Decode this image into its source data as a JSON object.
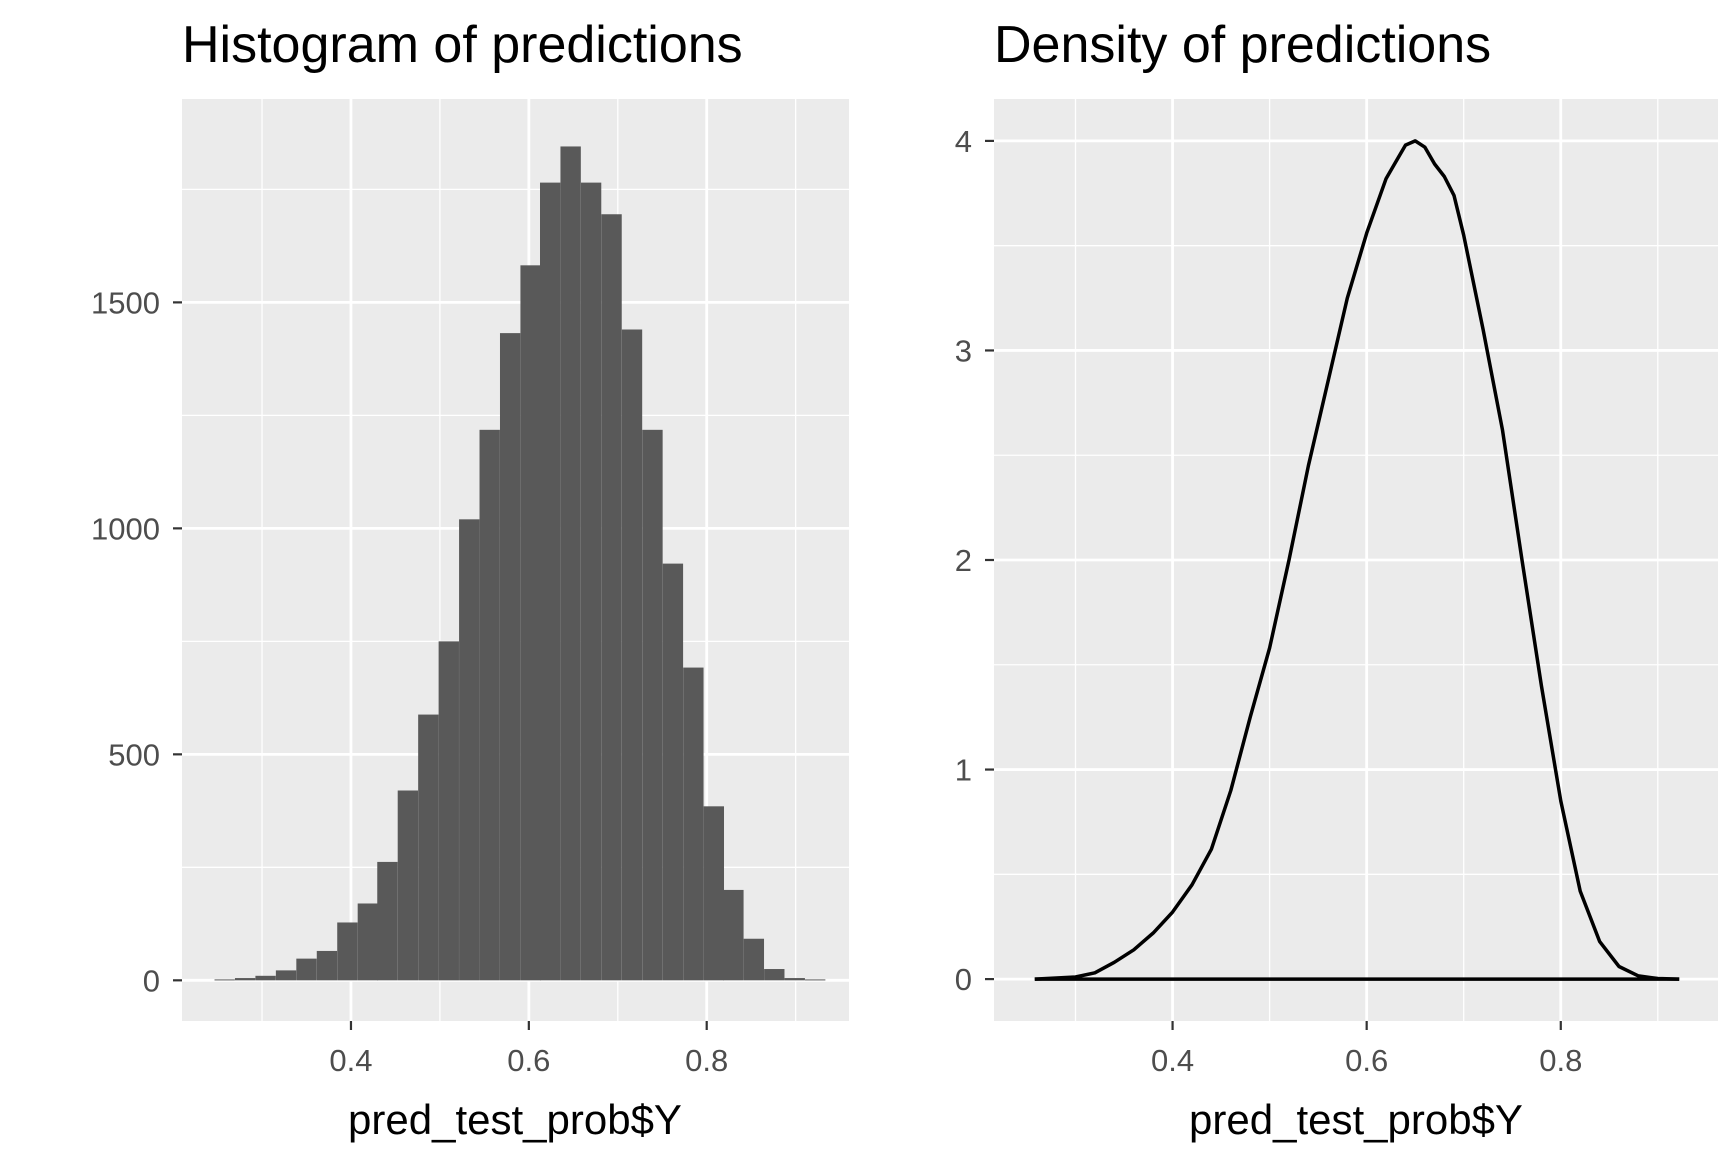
{
  "chart_data": [
    {
      "type": "bar",
      "title": "Histogram of predictions",
      "xlabel": "pred_test_prob$Y",
      "ylabel": "",
      "xlim": [
        0.21,
        0.96
      ],
      "ylim": [
        -90,
        1950
      ],
      "x_ticks": [
        0.4,
        0.6,
        0.8
      ],
      "x_tick_labels": [
        "0.4",
        "0.6",
        "0.8"
      ],
      "y_ticks": [
        0,
        500,
        1000,
        1500
      ],
      "y_tick_labels": [
        "0",
        "500",
        "1000",
        "1500"
      ],
      "bin_width": 0.0229,
      "bins": [
        {
          "x": 0.258,
          "count": 2
        },
        {
          "x": 0.281,
          "count": 5
        },
        {
          "x": 0.304,
          "count": 10
        },
        {
          "x": 0.327,
          "count": 22
        },
        {
          "x": 0.35,
          "count": 48
        },
        {
          "x": 0.373,
          "count": 65
        },
        {
          "x": 0.396,
          "count": 128
        },
        {
          "x": 0.419,
          "count": 170
        },
        {
          "x": 0.441,
          "count": 262
        },
        {
          "x": 0.464,
          "count": 420
        },
        {
          "x": 0.487,
          "count": 588
        },
        {
          "x": 0.51,
          "count": 750
        },
        {
          "x": 0.533,
          "count": 1020
        },
        {
          "x": 0.556,
          "count": 1218
        },
        {
          "x": 0.579,
          "count": 1432
        },
        {
          "x": 0.602,
          "count": 1582
        },
        {
          "x": 0.624,
          "count": 1765
        },
        {
          "x": 0.647,
          "count": 1845
        },
        {
          "x": 0.67,
          "count": 1765
        },
        {
          "x": 0.693,
          "count": 1695
        },
        {
          "x": 0.716,
          "count": 1440
        },
        {
          "x": 0.739,
          "count": 1218
        },
        {
          "x": 0.762,
          "count": 922
        },
        {
          "x": 0.785,
          "count": 692
        },
        {
          "x": 0.808,
          "count": 385
        },
        {
          "x": 0.83,
          "count": 200
        },
        {
          "x": 0.853,
          "count": 92
        },
        {
          "x": 0.876,
          "count": 25
        },
        {
          "x": 0.899,
          "count": 5
        },
        {
          "x": 0.922,
          "count": 2
        }
      ],
      "grid": true,
      "bar_color": "#595959",
      "panel_color": "#ebebeb"
    },
    {
      "type": "line",
      "title": "Density of predictions",
      "xlabel": "pred_test_prob$Y",
      "ylabel": "",
      "xlim": [
        0.216,
        0.962
      ],
      "ylim": [
        -0.2,
        4.2
      ],
      "x_ticks": [
        0.4,
        0.6,
        0.8
      ],
      "x_tick_labels": [
        "0.4",
        "0.6",
        "0.8"
      ],
      "y_ticks": [
        0,
        1,
        2,
        3,
        4
      ],
      "y_tick_labels": [
        "0",
        "1",
        "2",
        "3",
        "4"
      ],
      "points": [
        [
          0.258,
          0.0
        ],
        [
          0.3,
          0.01
        ],
        [
          0.32,
          0.03
        ],
        [
          0.34,
          0.08
        ],
        [
          0.36,
          0.14
        ],
        [
          0.38,
          0.22
        ],
        [
          0.4,
          0.32
        ],
        [
          0.42,
          0.45
        ],
        [
          0.44,
          0.62
        ],
        [
          0.46,
          0.9
        ],
        [
          0.48,
          1.25
        ],
        [
          0.5,
          1.58
        ],
        [
          0.52,
          2.0
        ],
        [
          0.54,
          2.45
        ],
        [
          0.56,
          2.85
        ],
        [
          0.58,
          3.25
        ],
        [
          0.6,
          3.56
        ],
        [
          0.62,
          3.82
        ],
        [
          0.64,
          3.98
        ],
        [
          0.65,
          4.0
        ],
        [
          0.66,
          3.97
        ],
        [
          0.67,
          3.89
        ],
        [
          0.68,
          3.83
        ],
        [
          0.69,
          3.74
        ],
        [
          0.7,
          3.55
        ],
        [
          0.72,
          3.1
        ],
        [
          0.74,
          2.62
        ],
        [
          0.76,
          2.0
        ],
        [
          0.78,
          1.4
        ],
        [
          0.8,
          0.85
        ],
        [
          0.82,
          0.42
        ],
        [
          0.84,
          0.18
        ],
        [
          0.86,
          0.06
        ],
        [
          0.88,
          0.015
        ],
        [
          0.9,
          0.003
        ],
        [
          0.922,
          0.0
        ]
      ],
      "baseline": 0,
      "grid": true,
      "line_color": "#000000",
      "panel_color": "#ebebeb"
    }
  ]
}
